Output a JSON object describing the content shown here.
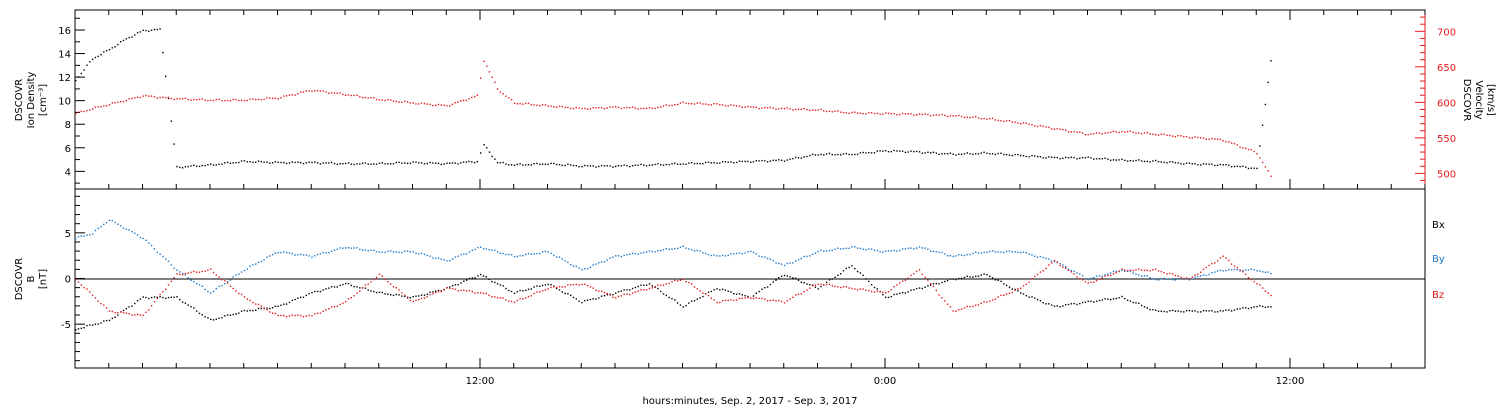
{
  "chart_data": [
    {
      "type": "scatter",
      "xlabel": "hours:minutes, Sep.  2, 2017 - Sep.  3, 2017",
      "x_ticks": [
        "12:00",
        "0:00",
        "12:00"
      ],
      "xlim_hours": [
        0,
        40
      ],
      "ylabel_left": [
        "DSCOVR",
        "Ion Density",
        "[cm⁻³]"
      ],
      "ylim_left": [
        2.5,
        17.7
      ],
      "yticks_left": [
        "4",
        "6",
        "8",
        "10",
        "12",
        "14",
        "16"
      ],
      "ylabel_right": [
        "DSCOVR",
        "Velocity",
        "[km/s]"
      ],
      "ylim_right": [
        478,
        730
      ],
      "yticks_right": [
        "500",
        "550",
        "600",
        "650",
        "700"
      ],
      "series": [
        {
          "axis": "left",
          "color": "#000000",
          "points": [
            [
              0,
              11.8
            ],
            [
              0.5,
              13.6
            ],
            [
              1,
              14.4
            ],
            [
              1.5,
              15.3
            ],
            [
              2,
              16.0
            ],
            [
              2.5,
              16.1
            ],
            [
              3.0,
              4.4
            ],
            [
              4,
              4.6
            ],
            [
              5,
              4.9
            ],
            [
              6,
              4.8
            ],
            [
              7,
              4.8
            ],
            [
              8,
              4.7
            ],
            [
              9,
              4.7
            ],
            [
              10,
              4.8
            ],
            [
              11,
              4.7
            ],
            [
              11.9,
              4.9
            ],
            [
              12.1,
              6.3
            ],
            [
              12.5,
              4.8
            ],
            [
              13,
              4.6
            ],
            [
              14,
              4.7
            ],
            [
              15,
              4.5
            ],
            [
              16,
              4.5
            ],
            [
              17,
              4.6
            ],
            [
              18,
              4.7
            ],
            [
              19,
              4.8
            ],
            [
              20,
              4.9
            ],
            [
              21,
              5.0
            ],
            [
              22,
              5.5
            ],
            [
              23,
              5.5
            ],
            [
              24,
              5.8
            ],
            [
              25,
              5.7
            ],
            [
              26,
              5.5
            ],
            [
              27,
              5.6
            ],
            [
              28,
              5.4
            ],
            [
              29,
              5.2
            ],
            [
              30,
              5.2
            ],
            [
              31,
              5.0
            ],
            [
              32,
              4.9
            ],
            [
              33,
              4.7
            ],
            [
              34,
              4.6
            ],
            [
              35,
              4.3
            ],
            [
              35.5,
              15.3
            ]
          ]
        },
        {
          "axis": "right",
          "color": "#e41a1c",
          "points": [
            [
              0,
              585
            ],
            [
              0.5,
              592
            ],
            [
              1,
              598
            ],
            [
              2,
              610
            ],
            [
              3,
              606
            ],
            [
              4,
              604
            ],
            [
              5,
              604
            ],
            [
              6,
              607
            ],
            [
              7,
              618
            ],
            [
              8,
              612
            ],
            [
              9,
              605
            ],
            [
              10,
              600
            ],
            [
              11,
              596
            ],
            [
              11.9,
              610
            ],
            [
              12.1,
              660
            ],
            [
              12.5,
              620
            ],
            [
              13,
              600
            ],
            [
              14,
              596
            ],
            [
              15,
              592
            ],
            [
              16,
              594
            ],
            [
              17,
              592
            ],
            [
              18,
              600
            ],
            [
              19,
              598
            ],
            [
              20,
              594
            ],
            [
              21,
              592
            ],
            [
              22,
              590
            ],
            [
              23,
              586
            ],
            [
              24,
              585
            ],
            [
              25,
              584
            ],
            [
              26,
              582
            ],
            [
              27,
              578
            ],
            [
              28,
              572
            ],
            [
              29,
              564
            ],
            [
              30,
              556
            ],
            [
              31,
              560
            ],
            [
              32,
              556
            ],
            [
              33,
              552
            ],
            [
              34,
              548
            ],
            [
              35,
              530
            ],
            [
              35.5,
              490
            ]
          ]
        }
      ]
    },
    {
      "type": "scatter",
      "xlabel": "hours:minutes, Sep.  2, 2017 - Sep.  3, 2017",
      "x_ticks": [
        "12:00",
        "0:00",
        "12:00"
      ],
      "xlim_hours": [
        0,
        40
      ],
      "ylabel": [
        "DSCOVR",
        "B",
        "[nT]"
      ],
      "ylim": [
        -9.8,
        9.8
      ],
      "yticks": [
        "5",
        "0",
        "-5"
      ],
      "series": [
        {
          "name": "Bx",
          "color": "#000000",
          "points": [
            [
              0,
              -5.5
            ],
            [
              1,
              -4.5
            ],
            [
              2,
              -2.0
            ],
            [
              3,
              -2.0
            ],
            [
              4,
              -4.5
            ],
            [
              5,
              -3.5
            ],
            [
              6,
              -3.0
            ],
            [
              7,
              -1.5
            ],
            [
              8,
              -0.5
            ],
            [
              9,
              -1.5
            ],
            [
              10,
              -2.0
            ],
            [
              11,
              -1.0
            ],
            [
              12,
              0.5
            ],
            [
              13,
              -1.5
            ],
            [
              14,
              -0.5
            ],
            [
              15,
              -2.5
            ],
            [
              16,
              -1.5
            ],
            [
              17,
              -0.5
            ],
            [
              18,
              -3.0
            ],
            [
              19,
              -1.0
            ],
            [
              20,
              -2.0
            ],
            [
              21,
              0.5
            ],
            [
              22,
              -1.0
            ],
            [
              23,
              1.5
            ],
            [
              24,
              -2.0
            ],
            [
              25,
              -1.0
            ],
            [
              26,
              0.0
            ],
            [
              27,
              0.5
            ],
            [
              28,
              -1.5
            ],
            [
              29,
              -3.0
            ],
            [
              30,
              -2.5
            ],
            [
              31,
              -2.0
            ],
            [
              32,
              -3.5
            ],
            [
              33,
              -3.5
            ],
            [
              34,
              -3.5
            ],
            [
              35,
              -3.0
            ],
            [
              35.5,
              -3.0
            ]
          ]
        },
        {
          "name": "By",
          "color": "#1f78c8",
          "points": [
            [
              0,
              4.5
            ],
            [
              0.5,
              5.0
            ],
            [
              1,
              6.5
            ],
            [
              2,
              4.5
            ],
            [
              3,
              1.0
            ],
            [
              4,
              -1.5
            ],
            [
              5,
              1.0
            ],
            [
              6,
              3.0
            ],
            [
              7,
              2.5
            ],
            [
              8,
              3.5
            ],
            [
              9,
              3.0
            ],
            [
              10,
              3.0
            ],
            [
              11,
              2.0
            ],
            [
              12,
              3.5
            ],
            [
              13,
              2.5
            ],
            [
              14,
              3.0
            ],
            [
              15,
              1.0
            ],
            [
              16,
              2.5
            ],
            [
              17,
              3.0
            ],
            [
              18,
              3.5
            ],
            [
              19,
              2.5
            ],
            [
              20,
              3.0
            ],
            [
              21,
              1.5
            ],
            [
              22,
              3.0
            ],
            [
              23,
              3.5
            ],
            [
              24,
              3.0
            ],
            [
              25,
              3.5
            ],
            [
              26,
              2.5
            ],
            [
              27,
              3.0
            ],
            [
              28,
              3.0
            ],
            [
              29,
              2.0
            ],
            [
              30,
              0.0
            ],
            [
              31,
              1.0
            ],
            [
              32,
              0.0
            ],
            [
              33,
              0.0
            ],
            [
              34,
              1.0
            ],
            [
              35,
              1.0
            ],
            [
              35.5,
              0.5
            ]
          ]
        },
        {
          "name": "Bz",
          "color": "#e41a1c",
          "points": [
            [
              0,
              0.0
            ],
            [
              1,
              -3.5
            ],
            [
              2,
              -4.0
            ],
            [
              3,
              0.5
            ],
            [
              4,
              1.0
            ],
            [
              5,
              -2.0
            ],
            [
              6,
              -4.0
            ],
            [
              7,
              -4.0
            ],
            [
              8,
              -2.5
            ],
            [
              9,
              0.5
            ],
            [
              10,
              -2.5
            ],
            [
              11,
              -1.0
            ],
            [
              12,
              -1.5
            ],
            [
              13,
              -2.5
            ],
            [
              14,
              -1.0
            ],
            [
              15,
              -0.5
            ],
            [
              16,
              -2.0
            ],
            [
              17,
              -1.0
            ],
            [
              18,
              0.0
            ],
            [
              19,
              -2.5
            ],
            [
              20,
              -2.0
            ],
            [
              21,
              -2.5
            ],
            [
              22,
              -0.5
            ],
            [
              23,
              -1.0
            ],
            [
              24,
              -1.5
            ],
            [
              25,
              1.0
            ],
            [
              26,
              -3.5
            ],
            [
              27,
              -2.5
            ],
            [
              28,
              -1.0
            ],
            [
              29,
              2.0
            ],
            [
              30,
              -0.5
            ],
            [
              31,
              1.0
            ],
            [
              32,
              1.0
            ],
            [
              33,
              0.0
            ],
            [
              34,
              2.5
            ],
            [
              35,
              -0.5
            ],
            [
              35.5,
              -2.0
            ]
          ]
        }
      ]
    }
  ],
  "legend": {
    "bx_label": "Bx",
    "by_label": "By",
    "bz_label": "Bz"
  }
}
